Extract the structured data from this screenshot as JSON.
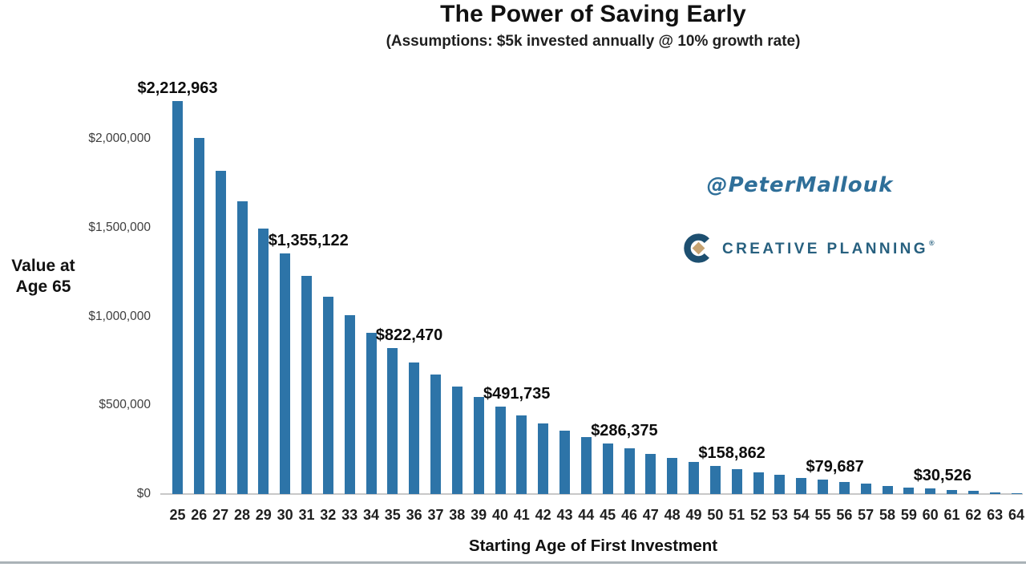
{
  "header": {
    "title": "The Power of Saving Early",
    "subtitle": "(Assumptions: $5k invested annually @ 10% growth rate)"
  },
  "branding": {
    "handle": "@PeterMallouk",
    "logo_text": "CREATIVE PLANNING",
    "logo_reg_mark": "®",
    "logo_icon": "c-ring-with-gold-diamond"
  },
  "colors": {
    "bar": "#2d74a8",
    "axis_line": "#c8c8c8",
    "handle_text": "#2f6f99",
    "logo_navy": "#1d4f70",
    "logo_text": "#27607f",
    "logo_gold": "#c6a372",
    "bottom_rule": "#aab3b7"
  },
  "chart_data": {
    "type": "bar",
    "title": "The Power of Saving Early",
    "subtitle": "(Assumptions: $5k invested annually @ 10% growth rate)",
    "xlabel": "Starting Age of First Investment",
    "ylabel": "Value at Age 65",
    "ylabel_lines": [
      "Value at",
      "Age 65"
    ],
    "categories": [
      25,
      26,
      27,
      28,
      29,
      30,
      31,
      32,
      33,
      34,
      35,
      36,
      37,
      38,
      39,
      40,
      41,
      42,
      43,
      44,
      45,
      46,
      47,
      48,
      49,
      50,
      51,
      52,
      53,
      54,
      55,
      56,
      57,
      58,
      59,
      60,
      61,
      62,
      63,
      64
    ],
    "values": [
      2212963,
      2007239,
      1820217,
      1650197,
      1495634,
      1355122,
      1227384,
      1111258,
      1005689,
      909717,
      822470,
      743155,
      671050,
      605500,
      545909,
      491735,
      442487,
      397715,
      357014,
      320012,
      286375,
      255795,
      227996,
      202724,
      179749,
      158862,
      139875,
      122614,
      106921,
      92656,
      79687,
      67897,
      57179,
      47436,
      38578,
      30526,
      23205,
      16550,
      10500,
      5000
    ],
    "ytick_values": [
      0,
      500000,
      1000000,
      1500000,
      2000000
    ],
    "ytick_labels": [
      "$0",
      "$500,000",
      "$1,000,000",
      "$1,500,000",
      "$2,000,000"
    ],
    "ylim": [
      0,
      2250000
    ],
    "grid": false,
    "legend": "none",
    "data_labels": [
      {
        "age": 25,
        "text": "$2,212,963",
        "align": "center"
      },
      {
        "age": 30,
        "text": "$1,355,122",
        "align": "right-of-bar"
      },
      {
        "age": 35,
        "text": "$822,470",
        "align": "right-of-bar"
      },
      {
        "age": 40,
        "text": "$491,735",
        "align": "right-of-bar"
      },
      {
        "age": 45,
        "text": "$286,375",
        "align": "right-of-bar"
      },
      {
        "age": 50,
        "text": "$158,862",
        "align": "right-of-bar"
      },
      {
        "age": 55,
        "text": "$79,687",
        "align": "right-of-bar"
      },
      {
        "age": 60,
        "text": "$30,526",
        "align": "right-of-bar"
      }
    ]
  }
}
